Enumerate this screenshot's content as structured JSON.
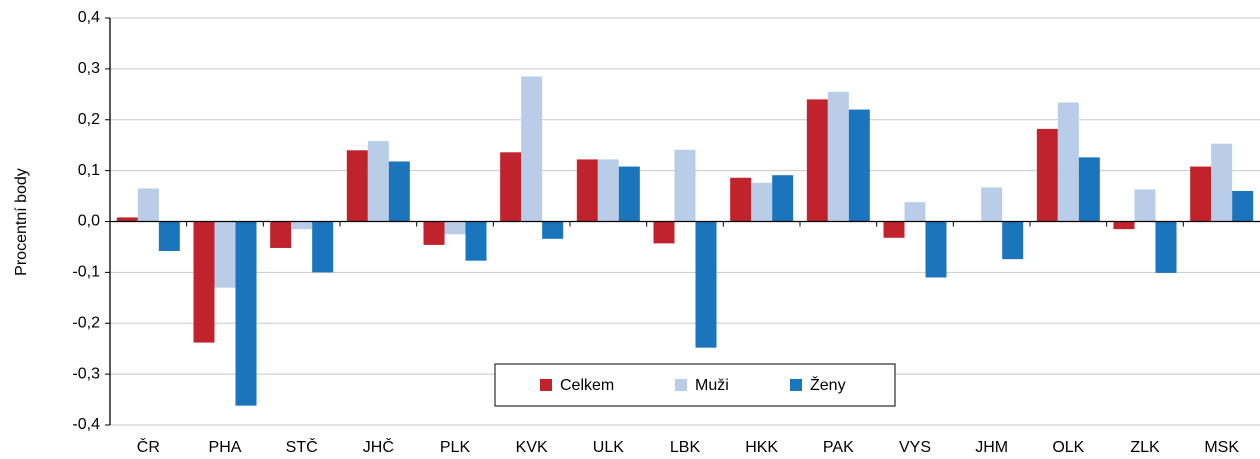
{
  "chart_data": {
    "type": "bar",
    "y_label": "Procentní body",
    "categories": [
      "ČR",
      "PHA",
      "STČ",
      "JHČ",
      "PLK",
      "KVK",
      "ULK",
      "LBK",
      "HKK",
      "PAK",
      "VYS",
      "JHM",
      "OLK",
      "ZLK",
      "MSK"
    ],
    "series": [
      {
        "name": "Celkem",
        "color": "#c0232c",
        "values": [
          0.008,
          -0.238,
          -0.052,
          0.14,
          -0.046,
          0.136,
          0.122,
          -0.043,
          0.086,
          0.24,
          -0.032,
          0.0,
          0.182,
          -0.015,
          0.108
        ]
      },
      {
        "name": "Muži",
        "color": "#b9cce8",
        "values": [
          0.065,
          -0.13,
          -0.015,
          0.158,
          -0.025,
          0.285,
          0.122,
          0.141,
          0.076,
          0.255,
          0.038,
          0.067,
          0.234,
          0.063,
          0.153
        ]
      },
      {
        "name": "Ženy",
        "color": "#1a75bc",
        "values": [
          -0.058,
          -0.362,
          -0.1,
          0.118,
          -0.077,
          -0.034,
          0.108,
          -0.248,
          0.091,
          0.22,
          -0.11,
          -0.074,
          0.126,
          -0.101,
          0.06
        ]
      }
    ],
    "ylim": [
      -0.4,
      0.4
    ],
    "yticks": [
      {
        "value": -0.4,
        "label": "-0,4"
      },
      {
        "value": -0.3,
        "label": "-0,3"
      },
      {
        "value": -0.2,
        "label": "-0,2"
      },
      {
        "value": -0.1,
        "label": "-0,1"
      },
      {
        "value": 0,
        "label": "0,0"
      },
      {
        "value": 0.1,
        "label": "0,1"
      },
      {
        "value": 0.2,
        "label": "0,2"
      },
      {
        "value": 0.3,
        "label": "0,3"
      },
      {
        "value": 0.4,
        "label": "0,4"
      }
    ],
    "grid": true,
    "legend": "bottom-center"
  }
}
